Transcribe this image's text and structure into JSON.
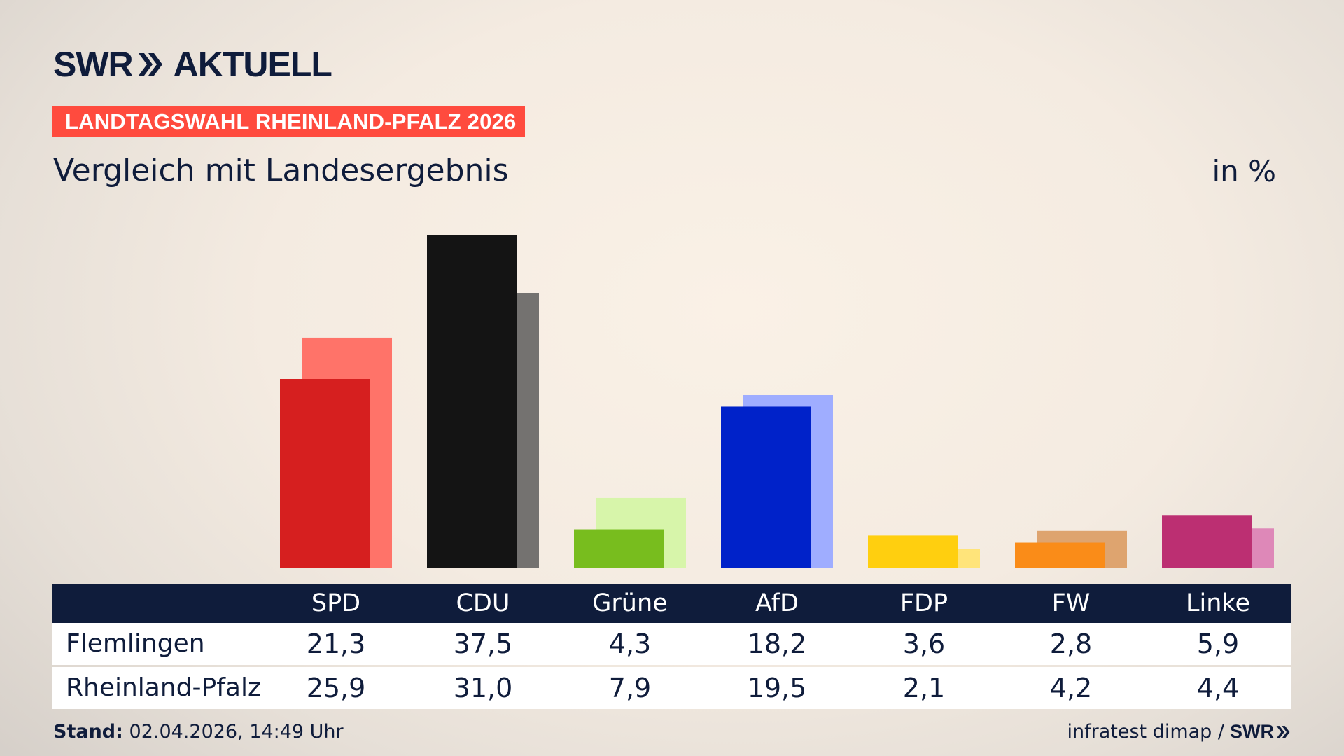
{
  "brand": {
    "logo_left": "SWR",
    "logo_right": "AKTUELL",
    "footer_logo": "SWR"
  },
  "header": {
    "badge": "LANDTAGSWAHL RHEINLAND-PFALZ 2026",
    "subtitle": "Vergleich mit Landesergebnis",
    "unit": "in %"
  },
  "footer": {
    "stand_label": "Stand:",
    "stand_value": "02.04.2026, 14:49 Uhr",
    "source": "infratest dimap /"
  },
  "colors": {
    "navy": "#0f1c3b",
    "badge": "#ff4b3e"
  },
  "chart_data": {
    "type": "bar",
    "categories": [
      "SPD",
      "CDU",
      "Grüne",
      "AfD",
      "FDP",
      "FW",
      "Linke"
    ],
    "series": [
      {
        "name": "Flemlingen",
        "values": [
          21.3,
          37.5,
          4.3,
          18.2,
          3.6,
          2.8,
          5.9
        ],
        "labels": [
          "21,3",
          "37,5",
          "4,3",
          "18,2",
          "3,6",
          "2,8",
          "5,9"
        ]
      },
      {
        "name": "Rheinland-Pfalz",
        "values": [
          25.9,
          31.0,
          7.9,
          19.5,
          2.1,
          4.2,
          4.4
        ],
        "labels": [
          "25,9",
          "31,0",
          "7,9",
          "19,5",
          "2,1",
          "4,2",
          "4,4"
        ]
      }
    ],
    "colors_local": [
      "#d61f1f",
      "#141414",
      "#78bd1e",
      "#0022c9",
      "#ffcf0f",
      "#fa8c18",
      "#bc2f72"
    ],
    "colors_state": [
      "#ff7369",
      "#747270",
      "#d7f5aa",
      "#9fadff",
      "#ffe47a",
      "#dea46f",
      "#de88b8"
    ],
    "ylim": [
      0,
      37.5
    ],
    "grid": false,
    "legend": "table-below"
  }
}
